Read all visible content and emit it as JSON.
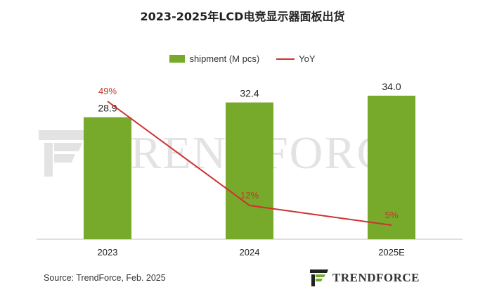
{
  "title": "2023-2025年LCD电竞显示器面板出货",
  "source": "Source: TrendForce, Feb. 2025",
  "brand": "TRENDFORCE",
  "watermark": "TRENDFORCE",
  "colors": {
    "bar": "#77a92b",
    "line": "#d03030",
    "yoy_label": "#c0392b",
    "axis": "#bfbfbf"
  },
  "chart_data": {
    "type": "bar",
    "title": "2023-2025年LCD电竞显示器面板出货",
    "categories": [
      "2023",
      "2024",
      "2025E"
    ],
    "series": [
      {
        "name": "shipment (M pcs)",
        "type": "bar",
        "values": [
          28.9,
          32.4,
          34.0
        ],
        "labels": [
          "28.9",
          "32.4",
          "34.0"
        ]
      },
      {
        "name": "YoY",
        "type": "line",
        "values": [
          49,
          12,
          5
        ],
        "labels": [
          "49%",
          "12%",
          "5%"
        ],
        "unit": "%"
      }
    ],
    "xlabel": "",
    "ylabel": "",
    "ylim": [
      0,
      40
    ],
    "y2lim": [
      0,
      60
    ],
    "legend": "top-center",
    "grid": false
  }
}
